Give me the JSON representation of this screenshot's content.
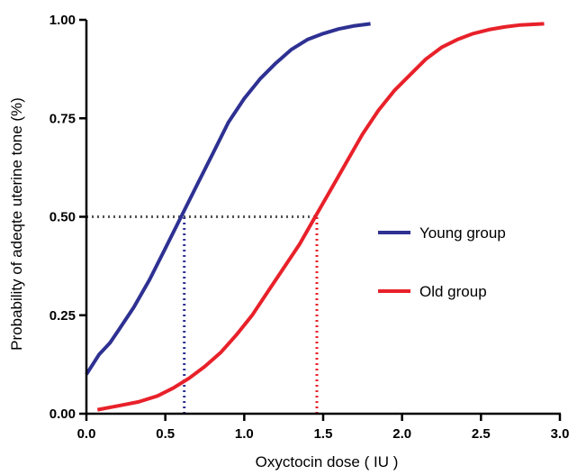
{
  "chart_data": {
    "type": "line",
    "title": "",
    "xlabel": "Oxyctocin dose ( IU )",
    "ylabel": "Probability of adeqte uterine tone (%)",
    "xlim": [
      0,
      3.0
    ],
    "ylim": [
      0,
      1.0
    ],
    "x_ticks": [
      "0.0",
      "0.5",
      "1.0",
      "1.5",
      "2.0",
      "2.5",
      "3.0"
    ],
    "y_ticks": [
      "0.00",
      "0.25",
      "0.50",
      "0.75",
      "1.00"
    ],
    "grid": false,
    "legend_position": "right",
    "series": [
      {
        "name": "Young group",
        "color": "#2e3192",
        "x": [
          0.0,
          0.08,
          0.15,
          0.2,
          0.3,
          0.4,
          0.5,
          0.6,
          0.7,
          0.8,
          0.9,
          1.0,
          1.1,
          1.2,
          1.3,
          1.4,
          1.5,
          1.6,
          1.7,
          1.8
        ],
        "y": [
          0.1,
          0.15,
          0.18,
          0.21,
          0.27,
          0.34,
          0.42,
          0.5,
          0.58,
          0.66,
          0.74,
          0.8,
          0.85,
          0.89,
          0.925,
          0.95,
          0.965,
          0.977,
          0.985,
          0.99
        ]
      },
      {
        "name": "Old group",
        "color": "#e8212a",
        "x": [
          0.07,
          0.2,
          0.33,
          0.45,
          0.55,
          0.65,
          0.75,
          0.85,
          0.95,
          1.05,
          1.15,
          1.25,
          1.35,
          1.45,
          1.55,
          1.65,
          1.75,
          1.85,
          1.95,
          2.05,
          2.15,
          2.25,
          2.35,
          2.45,
          2.55,
          2.65,
          2.75,
          2.9
        ],
        "y": [
          0.01,
          0.02,
          0.03,
          0.045,
          0.065,
          0.09,
          0.12,
          0.155,
          0.2,
          0.25,
          0.31,
          0.37,
          0.43,
          0.5,
          0.57,
          0.64,
          0.71,
          0.77,
          0.82,
          0.86,
          0.9,
          0.93,
          0.95,
          0.965,
          0.975,
          0.982,
          0.987,
          0.99
        ]
      }
    ],
    "reference_lines": [
      {
        "kind": "horizontal",
        "y": 0.5,
        "x_from": 0.0,
        "x_to": 1.46,
        "color": "#555555"
      },
      {
        "kind": "vertical",
        "x": 0.62,
        "y_from": 0.0,
        "y_to": 0.5,
        "color": "#2e3192"
      },
      {
        "kind": "vertical",
        "x": 1.46,
        "y_from": 0.0,
        "y_to": 0.5,
        "color": "#e8212a"
      }
    ]
  }
}
